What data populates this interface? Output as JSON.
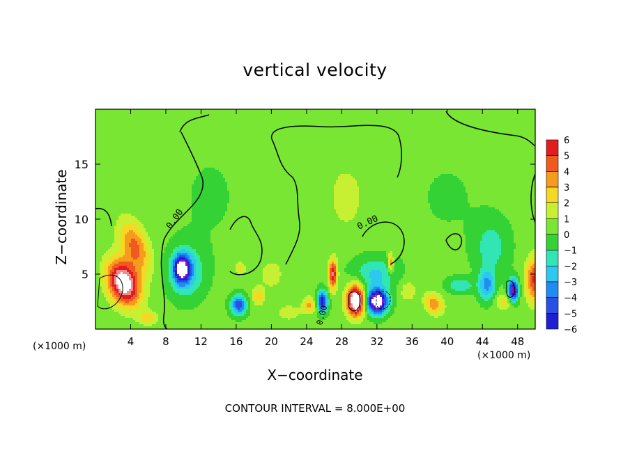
{
  "chart_data": {
    "type": "heatmap",
    "title": "vertical velocity",
    "xlabel": "X−coordinate",
    "ylabel": "Z−coordinate",
    "x_multiplier_labels": [
      "(×1000 m)",
      "(×1000 m)"
    ],
    "footer": "CONTOUR INTERVAL = 8.000E+00",
    "xlim": [
      0,
      50
    ],
    "ylim": [
      0,
      20
    ],
    "x_ticks": [
      4,
      8,
      12,
      16,
      20,
      24,
      28,
      32,
      36,
      40,
      44,
      48
    ],
    "y_ticks": [
      5,
      10,
      15
    ],
    "colorbar": {
      "ticks": [
        6,
        5,
        4,
        3,
        2,
        1,
        0,
        -1,
        -2,
        -3,
        -4,
        -5,
        -6
      ],
      "tick_labels": [
        "6",
        "5",
        "4",
        "3",
        "2",
        "1",
        "0",
        "−1",
        "−2",
        "−3",
        "−4",
        "−5",
        "−6"
      ],
      "range": [
        -6,
        6
      ]
    },
    "contour_labels": [
      "0.00",
      "0.00",
      "0.00"
    ],
    "background_value": 0.3,
    "features": [
      {
        "x": 3.2,
        "z": 4.2,
        "v": 8,
        "sx": 1.6,
        "sz": 2.2,
        "rot": 0.6
      },
      {
        "x": 4.5,
        "z": 7.5,
        "v": 4,
        "sx": 1.4,
        "sz": 2.5,
        "rot": 0.5
      },
      {
        "x": 9.8,
        "z": 5.5,
        "v": -7,
        "sx": 0.9,
        "sz": 1.2,
        "rot": 0
      },
      {
        "x": 10.3,
        "z": 5.2,
        "v": -3,
        "sx": 2.0,
        "sz": 2.3,
        "rot": 0
      },
      {
        "x": 6.0,
        "z": 1.0,
        "v": 2.5,
        "sx": 1.0,
        "sz": 0.6,
        "rot": 0
      },
      {
        "x": 16.3,
        "z": 2.2,
        "v": -5,
        "sx": 0.9,
        "sz": 0.9,
        "rot": 0
      },
      {
        "x": 16.5,
        "z": 5.5,
        "v": 2,
        "sx": 0.6,
        "sz": 0.6,
        "rot": 0
      },
      {
        "x": 18.5,
        "z": 3.0,
        "v": 2.5,
        "sx": 0.7,
        "sz": 0.8,
        "rot": 0
      },
      {
        "x": 20.0,
        "z": 5.0,
        "v": 1.5,
        "sx": 1.2,
        "sz": 1.2,
        "rot": 0
      },
      {
        "x": 24.3,
        "z": 2.2,
        "v": 3,
        "sx": 0.7,
        "sz": 0.7,
        "rot": 0
      },
      {
        "x": 25.8,
        "z": 2.5,
        "v": -6,
        "sx": 0.6,
        "sz": 1.0,
        "rot": 0
      },
      {
        "x": 27.0,
        "z": 5.0,
        "v": 6,
        "sx": 0.5,
        "sz": 1.3,
        "rot": 0
      },
      {
        "x": 29.6,
        "z": 2.6,
        "v": 9,
        "sx": 1.0,
        "sz": 1.4,
        "rot": 0
      },
      {
        "x": 32.0,
        "z": 2.5,
        "v": -9,
        "sx": 1.2,
        "sz": 1.1,
        "rot": 0
      },
      {
        "x": 31.8,
        "z": 5.0,
        "v": -2.5,
        "sx": 2.5,
        "sz": 1.5,
        "rot": 0
      },
      {
        "x": 33.6,
        "z": 6.0,
        "v": 4,
        "sx": 0.3,
        "sz": 0.9,
        "rot": 0
      },
      {
        "x": 35.5,
        "z": 3.5,
        "v": 1.5,
        "sx": 1.0,
        "sz": 1.0,
        "rot": 0
      },
      {
        "x": 38.5,
        "z": 2.3,
        "v": 3.5,
        "sx": 1.1,
        "sz": 0.9,
        "rot": -0.6
      },
      {
        "x": 41.5,
        "z": 4.0,
        "v": -2.2,
        "sx": 1.5,
        "sz": 0.7,
        "rot": 0
      },
      {
        "x": 44.5,
        "z": 4.0,
        "v": -3.5,
        "sx": 0.9,
        "sz": 1.4,
        "rot": 0
      },
      {
        "x": 45.0,
        "z": 7.5,
        "v": -1.8,
        "sx": 2.0,
        "sz": 2.5,
        "rot": 0
      },
      {
        "x": 46.5,
        "z": 2.5,
        "v": 2,
        "sx": 1.0,
        "sz": 0.8,
        "rot": 0
      },
      {
        "x": 47.5,
        "z": 3.5,
        "v": -7,
        "sx": 0.6,
        "sz": 1.0,
        "rot": 0
      },
      {
        "x": 50.0,
        "z": 4.5,
        "v": 5,
        "sx": 1.0,
        "sz": 2.0,
        "rot": 0
      },
      {
        "x": 22.0,
        "z": 1.5,
        "v": 1.2,
        "sx": 1.5,
        "sz": 0.8,
        "rot": 0
      },
      {
        "x": 28.5,
        "z": 12.0,
        "v": 1.2,
        "sx": 2.0,
        "sz": 3.0,
        "rot": 0
      },
      {
        "x": 13.0,
        "z": 12.0,
        "v": -0.4,
        "sx": 4.0,
        "sz": 5.0,
        "rot": 0
      },
      {
        "x": 40.0,
        "z": 12.0,
        "v": -0.4,
        "sx": 4.0,
        "sz": 4.0,
        "rot": 0
      }
    ]
  }
}
